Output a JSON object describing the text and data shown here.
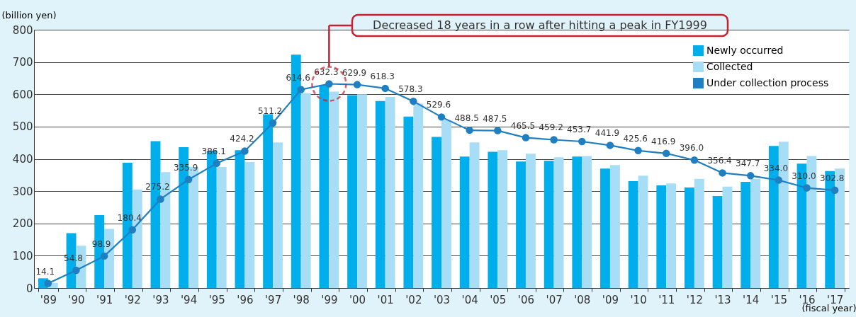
{
  "chart_data": {
    "type": "bar",
    "ylabel": "(billion yen)",
    "xlabel": "(fiscal year)",
    "categories": [
      "'89",
      "'90",
      "'91",
      "'92",
      "'93",
      "'94",
      "'95",
      "'96",
      "'97",
      "'98",
      "'99",
      "'00",
      "'01",
      "'02",
      "'03",
      "'04",
      "'05",
      "'06",
      "'07",
      "'08",
      "'09",
      "'10",
      "'11",
      "'12",
      "'13",
      "'14",
      "'15",
      "'16",
      "'17"
    ],
    "series": [
      {
        "name": "Newly occurred",
        "color": "#00aeeb",
        "values": [
          30,
          170,
          226,
          388,
          455,
          436,
          425,
          427,
          538,
          723,
          629,
          597,
          579,
          531,
          468,
          407,
          422,
          392,
          394,
          407,
          370,
          331,
          318,
          311,
          285,
          329,
          440,
          385,
          362
        ]
      },
      {
        "name": "Collected",
        "color": "#a8ddf6",
        "values": [
          16,
          131,
          183,
          305,
          359,
          375,
          375,
          390,
          451,
          604,
          608,
          600,
          592,
          571,
          520,
          451,
          427,
          416,
          405,
          409,
          381,
          348,
          324,
          338,
          314,
          338,
          453,
          409,
          370
        ]
      },
      {
        "name": "Under collection process",
        "type": "line",
        "color": "#1f7fc0",
        "marker": "circle",
        "line_style": "solid",
        "values": [
          14.1,
          54.8,
          98.9,
          180.4,
          275.2,
          335.9,
          386.1,
          424.2,
          511.2,
          614.6,
          632.3,
          629.9,
          618.3,
          578.3,
          529.6,
          488.5,
          487.5,
          465.5,
          459.2,
          453.7,
          441.9,
          425.6,
          416.9,
          396.0,
          356.4,
          347.7,
          334.0,
          310.0,
          302.8
        ],
        "value_labels": [
          "14.1",
          "54.8",
          "98.9",
          "180.4",
          "275.2",
          "335.9",
          "386.1",
          "424.2",
          "511.2",
          "614.6",
          "632.3",
          "629.9",
          "618.3",
          "578.3",
          "529.6",
          "488.5",
          "487.5",
          "465.5",
          "459.2",
          "453.7",
          "441.9",
          "425.6",
          "416.9",
          "396.0",
          "356.4",
          "347.7",
          "334.0",
          "310.0",
          "302.8"
        ]
      }
    ],
    "ylim": [
      0,
      800
    ],
    "yticks": [
      0,
      100,
      200,
      300,
      400,
      500,
      600,
      700,
      800
    ],
    "grid": "y",
    "legend": "top right",
    "annotations": [
      "Decreased 18 years in a row after hitting a peak in FY1999"
    ]
  }
}
